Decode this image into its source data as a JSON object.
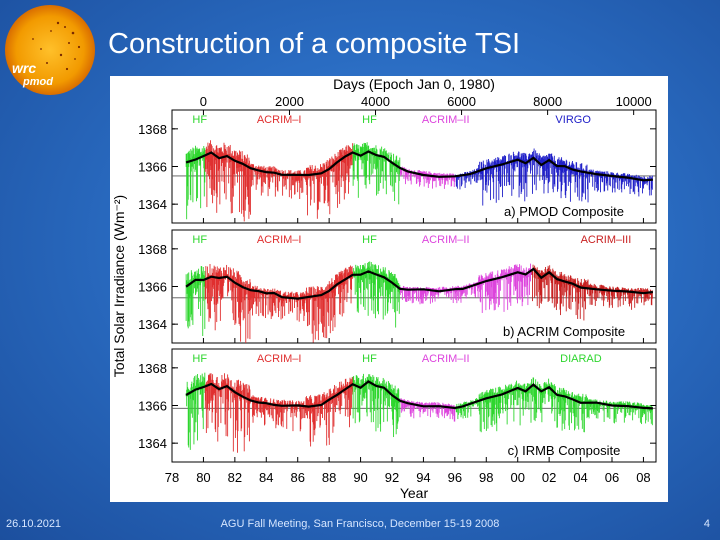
{
  "slide": {
    "title": "Construction of a composite TSI",
    "logo_text": [
      "wrc",
      "pmod"
    ],
    "footer_date": "26.10.2021",
    "footer_meeting": "AGU Fall Meeting, San Francisco, December 15-19 2008",
    "page_number": "4"
  },
  "colors": {
    "HF": "#2ed62e",
    "ACRIM-I": "#e03030",
    "ACRIM-II": "#dd44dd",
    "ACRIM-III": "#c82020",
    "VIRGO": "#2020c8",
    "DIARAD": "#2ed62e",
    "mean": "#000000",
    "sun": "#f5a000"
  },
  "chart_data": {
    "type": "line",
    "top_axis": {
      "label": "Days (Epoch Jan 0, 1980)",
      "ticks": [
        "0",
        "2000",
        "4000",
        "6000",
        "8000",
        "10000"
      ],
      "tick_values": [
        0,
        2000,
        4000,
        6000,
        8000,
        10000
      ]
    },
    "xlabel": "Year",
    "x_ticks": [
      "78",
      "80",
      "82",
      "84",
      "86",
      "88",
      "90",
      "92",
      "94",
      "96",
      "98",
      "00",
      "02",
      "04",
      "06",
      "08"
    ],
    "x_range": [
      1978.0,
      2008.8
    ],
    "ylabel": "Total Solar Irradiance (Wm⁻²)",
    "panels": [
      {
        "caption": "a) PMOD Composite",
        "y_range": [
          1363.0,
          1369.0
        ],
        "y_ticks": [
          "1368",
          "1366",
          "1364"
        ],
        "y_tick_values": [
          1368,
          1366,
          1364
        ],
        "reference": 1365.5,
        "labels": [
          {
            "text": "HF",
            "x": 1979.3,
            "key": "HF"
          },
          {
            "text": "ACRIM–I",
            "x": 1983.4,
            "key": "ACRIM-I"
          },
          {
            "text": "HF",
            "x": 1990.1,
            "key": "HF"
          },
          {
            "text": "ACRIM–II",
            "x": 1993.9,
            "key": "ACRIM-II"
          },
          {
            "text": "VIRGO",
            "x": 2002.4,
            "key": "VIRGO"
          }
        ],
        "segments": [
          {
            "instrument": "HF",
            "start": 1978.9,
            "end": 1980.1
          },
          {
            "instrument": "ACRIM-I",
            "start": 1980.1,
            "end": 1989.5
          },
          {
            "instrument": "HF",
            "start": 1989.5,
            "end": 1992.5
          },
          {
            "instrument": "ACRIM-II",
            "start": 1992.5,
            "end": 1996.0
          },
          {
            "instrument": "VIRGO",
            "start": 1996.0,
            "end": 2008.6
          }
        ],
        "mean_series": {
          "x": [
            1978.9,
            1979.5,
            1980.0,
            1980.5,
            1981.0,
            1981.5,
            1982.0,
            1982.5,
            1983.0,
            1983.5,
            1984.0,
            1984.5,
            1985.0,
            1986.0,
            1986.7,
            1987.5,
            1988.0,
            1988.5,
            1989.0,
            1989.5,
            1990.0,
            1990.5,
            1991.0,
            1991.5,
            1992.0,
            1992.5,
            1993.0,
            1994.0,
            1995.0,
            1996.0,
            1996.5,
            1997.0,
            1998.0,
            1999.0,
            2000.0,
            2000.5,
            2001.0,
            2001.5,
            2002.0,
            2002.5,
            2003.0,
            2003.5,
            2004.0,
            2005.0,
            2006.0,
            2007.0,
            2008.0,
            2008.6
          ],
          "y": [
            1366.2,
            1366.4,
            1366.5,
            1366.7,
            1366.5,
            1366.6,
            1366.3,
            1366.1,
            1365.9,
            1365.8,
            1365.7,
            1365.7,
            1365.55,
            1365.5,
            1365.5,
            1365.6,
            1365.9,
            1366.2,
            1366.5,
            1366.7,
            1366.6,
            1366.8,
            1366.6,
            1366.5,
            1366.2,
            1365.9,
            1365.7,
            1365.6,
            1365.5,
            1365.45,
            1365.5,
            1365.6,
            1365.9,
            1366.1,
            1366.4,
            1366.2,
            1366.5,
            1366.1,
            1366.3,
            1366.0,
            1366.0,
            1365.8,
            1365.7,
            1365.6,
            1365.5,
            1365.4,
            1365.3,
            1365.3
          ]
        },
        "noise_amplitude": [
          {
            "start": 1978.9,
            "end": 1983.0,
            "amp": 1.6
          },
          {
            "start": 1983.0,
            "end": 1986.5,
            "amp": 0.7
          },
          {
            "start": 1986.5,
            "end": 1992.5,
            "amp": 1.3
          },
          {
            "start": 1992.5,
            "end": 1997.5,
            "amp": 0.4
          },
          {
            "start": 1997.5,
            "end": 2004.5,
            "amp": 1.1
          },
          {
            "start": 2004.5,
            "end": 2008.6,
            "amp": 0.5
          }
        ]
      },
      {
        "caption": "b) ACRIM Composite",
        "y_range": [
          1363.0,
          1369.0
        ],
        "y_ticks": [
          "1368",
          "1366",
          "1364"
        ],
        "y_tick_values": [
          1368,
          1366,
          1364
        ],
        "reference": 1365.4,
        "labels": [
          {
            "text": "HF",
            "x": 1979.3,
            "key": "HF"
          },
          {
            "text": "ACRIM–I",
            "x": 1983.4,
            "key": "ACRIM-I"
          },
          {
            "text": "HF",
            "x": 1990.1,
            "key": "HF"
          },
          {
            "text": "ACRIM–II",
            "x": 1993.9,
            "key": "ACRIM-II"
          },
          {
            "text": "ACRIM–III",
            "x": 2004.0,
            "key": "ACRIM-III"
          }
        ],
        "segments": [
          {
            "instrument": "HF",
            "start": 1978.9,
            "end": 1980.1
          },
          {
            "instrument": "ACRIM-I",
            "start": 1980.1,
            "end": 1989.5
          },
          {
            "instrument": "HF",
            "start": 1989.5,
            "end": 1992.5
          },
          {
            "instrument": "ACRIM-II",
            "start": 1992.5,
            "end": 2000.9
          },
          {
            "instrument": "ACRIM-III",
            "start": 2000.9,
            "end": 2008.6
          }
        ],
        "mean_series": {
          "x": [
            1978.9,
            1979.5,
            1980.0,
            1980.5,
            1981.0,
            1981.5,
            1982.0,
            1982.5,
            1983.0,
            1983.5,
            1984.0,
            1984.5,
            1985.0,
            1986.0,
            1986.7,
            1987.5,
            1988.0,
            1988.5,
            1989.0,
            1989.5,
            1990.0,
            1990.5,
            1991.0,
            1991.5,
            1992.0,
            1992.5,
            1993.0,
            1994.0,
            1995.0,
            1996.0,
            1996.5,
            1997.0,
            1998.0,
            1999.0,
            2000.0,
            2000.5,
            2001.0,
            2001.5,
            2002.0,
            2002.5,
            2003.0,
            2003.5,
            2004.0,
            2005.0,
            2006.0,
            2007.0,
            2008.0,
            2008.6
          ],
          "y": [
            1366.0,
            1366.3,
            1366.4,
            1366.5,
            1366.4,
            1366.5,
            1366.2,
            1366.0,
            1365.8,
            1365.7,
            1365.6,
            1365.6,
            1365.45,
            1365.4,
            1365.4,
            1365.5,
            1365.8,
            1366.1,
            1366.4,
            1366.6,
            1366.6,
            1366.8,
            1366.6,
            1366.5,
            1366.2,
            1365.9,
            1365.8,
            1365.8,
            1365.8,
            1365.85,
            1365.9,
            1366.0,
            1366.3,
            1366.5,
            1366.8,
            1366.6,
            1366.9,
            1366.5,
            1366.7,
            1366.4,
            1366.3,
            1366.1,
            1366.0,
            1365.9,
            1365.8,
            1365.7,
            1365.7,
            1365.7
          ]
        },
        "noise_amplitude": [
          {
            "start": 1978.9,
            "end": 1983.0,
            "amp": 1.6
          },
          {
            "start": 1983.0,
            "end": 1986.5,
            "amp": 0.7
          },
          {
            "start": 1986.5,
            "end": 1992.5,
            "amp": 1.3
          },
          {
            "start": 1992.5,
            "end": 1997.5,
            "amp": 0.4
          },
          {
            "start": 1997.5,
            "end": 2004.5,
            "amp": 1.0
          },
          {
            "start": 2004.5,
            "end": 2008.6,
            "amp": 0.5
          }
        ]
      },
      {
        "caption": "c) IRMB Composite",
        "y_range": [
          1363.0,
          1369.0
        ],
        "y_ticks": [
          "1368",
          "1366",
          "1364"
        ],
        "y_tick_values": [
          1368,
          1366,
          1364
        ],
        "reference": 1365.85,
        "labels": [
          {
            "text": "HF",
            "x": 1979.3,
            "key": "HF"
          },
          {
            "text": "ACRIM–I",
            "x": 1983.4,
            "key": "ACRIM-I"
          },
          {
            "text": "HF",
            "x": 1990.1,
            "key": "HF"
          },
          {
            "text": "ACRIM–II",
            "x": 1993.9,
            "key": "ACRIM-II"
          },
          {
            "text": "DIARAD",
            "x": 2002.7,
            "key": "DIARAD"
          }
        ],
        "segments": [
          {
            "instrument": "HF",
            "start": 1978.9,
            "end": 1980.1
          },
          {
            "instrument": "ACRIM-I",
            "start": 1980.1,
            "end": 1989.5
          },
          {
            "instrument": "HF",
            "start": 1989.5,
            "end": 1992.5
          },
          {
            "instrument": "ACRIM-II",
            "start": 1992.5,
            "end": 1996.0
          },
          {
            "instrument": "DIARAD",
            "start": 1996.0,
            "end": 2008.6
          }
        ],
        "mean_series": {
          "x": [
            1978.9,
            1979.5,
            1980.0,
            1980.5,
            1981.0,
            1981.5,
            1982.0,
            1982.5,
            1983.0,
            1983.5,
            1984.0,
            1984.5,
            1985.0,
            1986.0,
            1986.7,
            1987.5,
            1988.0,
            1988.5,
            1989.0,
            1989.5,
            1990.0,
            1990.5,
            1991.0,
            1991.5,
            1992.0,
            1992.5,
            1993.0,
            1994.0,
            1995.0,
            1996.0,
            1996.5,
            1997.0,
            1998.0,
            1999.0,
            2000.0,
            2000.5,
            2001.0,
            2001.5,
            2002.0,
            2002.5,
            2003.0,
            2003.5,
            2004.0,
            2005.0,
            2006.0,
            2007.0,
            2008.0,
            2008.6
          ],
          "y": [
            1366.5,
            1366.9,
            1367.0,
            1367.1,
            1366.9,
            1367.0,
            1366.7,
            1366.5,
            1366.3,
            1366.2,
            1366.1,
            1366.05,
            1366.0,
            1365.95,
            1365.95,
            1366.05,
            1366.3,
            1366.6,
            1366.9,
            1367.1,
            1367.0,
            1367.3,
            1367.0,
            1366.9,
            1366.6,
            1366.3,
            1366.1,
            1366.0,
            1366.0,
            1365.9,
            1366.0,
            1366.1,
            1366.4,
            1366.6,
            1366.9,
            1366.7,
            1367.1,
            1366.7,
            1367.0,
            1366.6,
            1366.5,
            1366.3,
            1366.2,
            1366.1,
            1366.0,
            1366.0,
            1365.9,
            1365.9
          ]
        },
        "noise_amplitude": [
          {
            "start": 1978.9,
            "end": 1983.0,
            "amp": 1.7
          },
          {
            "start": 1983.0,
            "end": 1986.5,
            "amp": 0.7
          },
          {
            "start": 1986.5,
            "end": 1992.5,
            "amp": 1.3
          },
          {
            "start": 1992.5,
            "end": 1997.5,
            "amp": 0.4
          },
          {
            "start": 1997.5,
            "end": 2004.5,
            "amp": 1.0
          },
          {
            "start": 2004.5,
            "end": 2008.6,
            "amp": 0.5
          }
        ]
      }
    ]
  }
}
